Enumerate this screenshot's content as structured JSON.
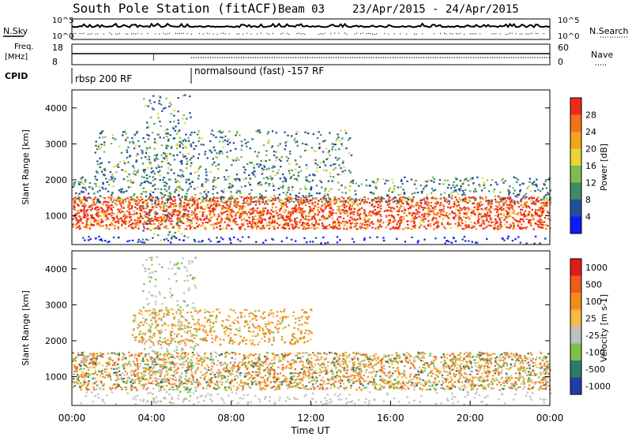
{
  "header": {
    "station": "South Pole Station (fitACF)",
    "beam": "Beam 03",
    "date_range": "23/Apr/2015 - 24/Apr/2015"
  },
  "top_panels": {
    "nsky_label": "N.Sky",
    "nsearch_label": "N.Search",
    "noise_ticks_left": [
      "10^5",
      "10^0"
    ],
    "noise_ticks_right": [
      "10^5",
      "10^0"
    ],
    "freq_label_1": "Freq.",
    "freq_label_2": "[MHz]",
    "freq_ticks": [
      "18",
      "8"
    ],
    "nave_label": "Nave",
    "nave_ticks": [
      "60",
      "0"
    ],
    "cpid_label": "CPID",
    "cpid_segments": [
      {
        "label": "rbsp 200 RF",
        "start_hour": 0
      },
      {
        "label": "normalsound (fast) -157 RF",
        "start_hour": 6
      }
    ]
  },
  "chart_data": [
    {
      "type": "heatmap",
      "name": "power",
      "ylabel": "Slant Range [km]",
      "yticks": [
        "1000",
        "2000",
        "3000",
        "4000"
      ],
      "ylim": [
        200,
        4500
      ],
      "x": [
        "00:00",
        "04:00",
        "08:00",
        "12:00",
        "16:00",
        "20:00",
        "00:00"
      ],
      "colorbar_label": "Power [dB]",
      "colorbar_ticks": [
        "4",
        "8",
        "12",
        "16",
        "20",
        "24",
        "28"
      ],
      "colors": [
        "#0a1cff",
        "#244d9c",
        "#3d8a6a",
        "#7fbd4a",
        "#e9d53a",
        "#f4a41a",
        "#f4701a",
        "#ef2a1a"
      ]
    },
    {
      "type": "heatmap",
      "name": "velocity",
      "ylabel": "Slant Range [km]",
      "yticks": [
        "1000",
        "2000",
        "3000",
        "4000"
      ],
      "ylim": [
        200,
        4500
      ],
      "xlabel": "Time UT",
      "x": [
        "00:00",
        "04:00",
        "08:00",
        "12:00",
        "16:00",
        "20:00",
        "00:00"
      ],
      "colorbar_label": "Velocity [m s-1]",
      "colorbar_ticks": [
        "1000",
        "500",
        "100",
        "25",
        "-25",
        "-100",
        "-500",
        "-1000"
      ],
      "colors": [
        "#1e3fa3",
        "#2f7a6a",
        "#7cc24a",
        "#bfbfbf",
        "#f7b84a",
        "#f28a1e",
        "#f05a1a",
        "#e11a1a"
      ]
    }
  ]
}
